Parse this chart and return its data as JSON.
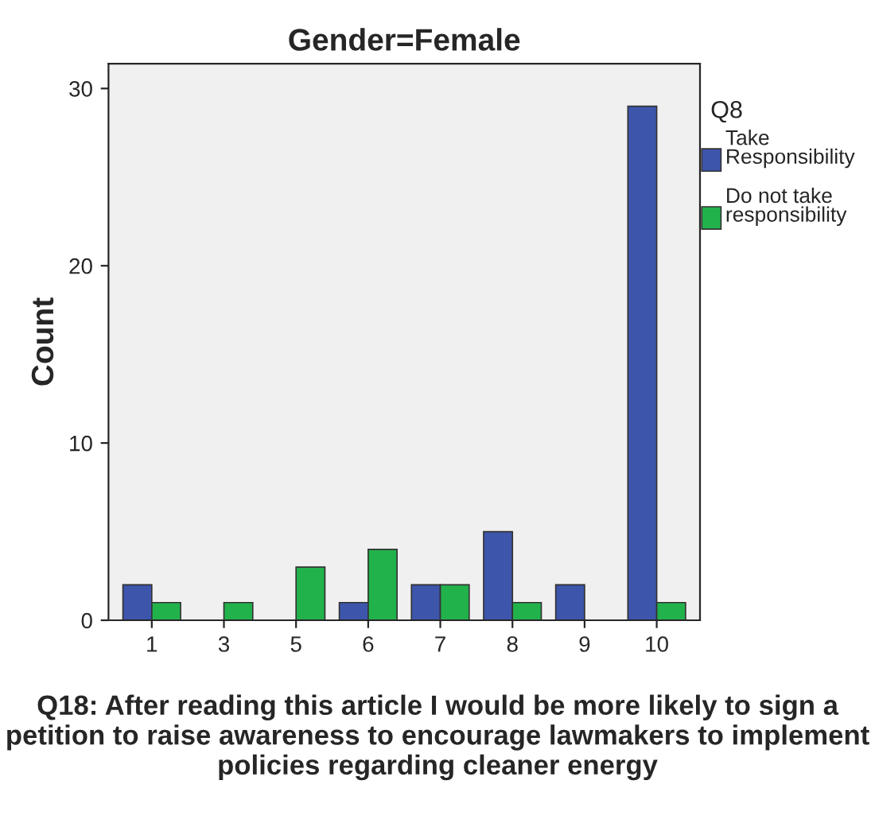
{
  "chart_data": {
    "type": "bar",
    "title": "Gender=Female",
    "xlabel": "Q18: After reading this article I would be more likely to sign a petition to raise awareness to encourage lawmakers to implement policies regarding cleaner energy",
    "ylabel": "Count",
    "legend_title": "Q8",
    "categories": [
      "1",
      "3",
      "5",
      "6",
      "7",
      "8",
      "9",
      "10"
    ],
    "series": [
      {
        "name": "Take Responsibility",
        "color": "#3d55ab",
        "values": [
          2,
          0,
          0,
          1,
          2,
          5,
          2,
          29
        ]
      },
      {
        "name": "Do not take responsibility",
        "color": "#22b24c",
        "values": [
          1,
          1,
          3,
          4,
          2,
          1,
          0,
          1
        ]
      }
    ],
    "ylim": [
      0,
      31.4
    ],
    "yticks": [
      0,
      10,
      20,
      30
    ],
    "grid": false,
    "legend": "right"
  }
}
